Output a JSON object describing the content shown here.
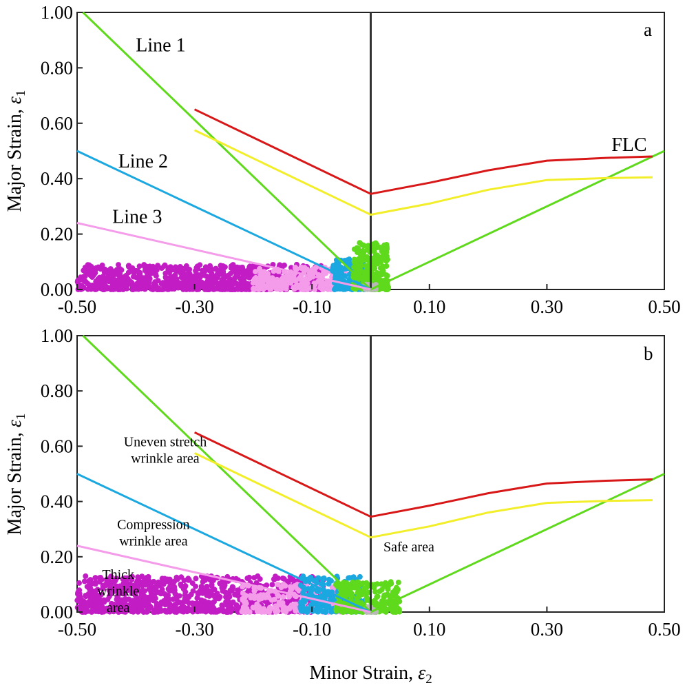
{
  "chart_data": [
    {
      "type": "scatter",
      "panel": "a",
      "xlabel": "",
      "ylabel": "Major Strain, ε1",
      "xlim": [
        -0.5,
        0.5
      ],
      "ylim": [
        0,
        1
      ],
      "x_ticks": [
        "-0.50",
        "-0.30",
        "-0.10",
        "0.10",
        "0.30",
        "0.50"
      ],
      "y_ticks": [
        "0.00",
        "0.20",
        "0.40",
        "0.60",
        "0.80",
        "1.00"
      ],
      "line_labels": [
        {
          "text": "Line 1",
          "x": -0.4,
          "y": 0.86
        },
        {
          "text": "Line 2",
          "x": -0.43,
          "y": 0.44
        },
        {
          "text": "Line 3",
          "x": -0.44,
          "y": 0.24
        },
        {
          "text": "FLC",
          "x": 0.41,
          "y": 0.5
        }
      ],
      "area_labels": [],
      "series": [
        {
          "name": "",
          "kind": "line",
          "color": "#5fd91c",
          "points": [
            [
              -0.49,
              1.0
            ],
            [
              0.0,
              0.0
            ],
            [
              0.5,
              0.5
            ]
          ]
        },
        {
          "name": "",
          "kind": "line",
          "color": "#1ba8e0",
          "points": [
            [
              -0.5,
              0.5
            ],
            [
              0.0,
              0.0
            ]
          ]
        },
        {
          "name": "",
          "kind": "line",
          "color": "#f49bea",
          "points": [
            [
              -0.5,
              0.24
            ],
            [
              0.0,
              0.0
            ]
          ]
        },
        {
          "name": "FLC",
          "kind": "line",
          "color": "#d81818",
          "points": [
            [
              -0.3,
              0.65
            ],
            [
              0.0,
              0.345
            ],
            [
              0.1,
              0.385
            ],
            [
              0.2,
              0.43
            ],
            [
              0.3,
              0.465
            ],
            [
              0.4,
              0.475
            ],
            [
              0.48,
              0.48
            ]
          ]
        },
        {
          "name": "",
          "kind": "line",
          "color": "#f2ee2a",
          "points": [
            [
              -0.3,
              0.575
            ],
            [
              0.0,
              0.27
            ],
            [
              0.1,
              0.31
            ],
            [
              0.2,
              0.36
            ],
            [
              0.3,
              0.395
            ],
            [
              0.4,
              0.402
            ],
            [
              0.48,
              0.405
            ]
          ]
        },
        {
          "name": "",
          "kind": "points",
          "color": "#c21cc4",
          "x_range": [
            -0.5,
            -0.08
          ],
          "y_max": 0.09,
          "n": 900
        },
        {
          "name": "",
          "kind": "points",
          "color": "#f49bea",
          "x_range": [
            -0.2,
            -0.04
          ],
          "y_max": 0.08,
          "n": 200
        },
        {
          "name": "",
          "kind": "points",
          "color": "#1ba8e0",
          "x_range": [
            -0.065,
            -0.01
          ],
          "y_max": 0.11,
          "n": 180
        },
        {
          "name": "",
          "kind": "points",
          "color": "#5fd91c",
          "x_range": [
            -0.03,
            0.03
          ],
          "y_max": 0.17,
          "n": 220
        },
        {
          "name": "",
          "kind": "points",
          "color": "#b8b8b8",
          "x_range": [
            -0.01,
            0.01
          ],
          "y_max": 0.02,
          "n": 30
        }
      ]
    },
    {
      "type": "scatter",
      "panel": "b",
      "xlabel": "Minor Strain, ε2",
      "ylabel": "Major Strain, ε1",
      "xlim": [
        -0.5,
        0.5
      ],
      "ylim": [
        0,
        1
      ],
      "x_ticks": [
        "-0.50",
        "-0.30",
        "-0.10",
        "0.10",
        "0.30",
        "0.50"
      ],
      "y_ticks": [
        "0.00",
        "0.20",
        "0.40",
        "0.60",
        "0.80",
        "1.00"
      ],
      "line_labels": [],
      "area_labels": [
        {
          "lines": [
            "Uneven stretch",
            "wrinkle area"
          ],
          "x": -0.35,
          "y": 0.6
        },
        {
          "lines": [
            "Compression",
            "wrinkle area"
          ],
          "x": -0.37,
          "y": 0.3
        },
        {
          "lines": [
            "Thick",
            "wrinkle",
            "area"
          ],
          "x": -0.43,
          "y": 0.12
        },
        {
          "lines": [
            "Safe area"
          ],
          "x": 0.065,
          "y": 0.22
        }
      ],
      "series": [
        {
          "name": "",
          "kind": "line",
          "color": "#5fd91c",
          "points": [
            [
              -0.49,
              1.0
            ],
            [
              0.0,
              0.0
            ],
            [
              0.5,
              0.5
            ]
          ]
        },
        {
          "name": "",
          "kind": "line",
          "color": "#1ba8e0",
          "points": [
            [
              -0.5,
              0.5
            ],
            [
              0.0,
              0.0
            ]
          ]
        },
        {
          "name": "",
          "kind": "line",
          "color": "#f49bea",
          "points": [
            [
              -0.5,
              0.24
            ],
            [
              0.0,
              0.0
            ]
          ]
        },
        {
          "name": "",
          "kind": "line",
          "color": "#d81818",
          "points": [
            [
              -0.3,
              0.65
            ],
            [
              0.0,
              0.345
            ],
            [
              0.1,
              0.385
            ],
            [
              0.2,
              0.43
            ],
            [
              0.3,
              0.465
            ],
            [
              0.4,
              0.475
            ],
            [
              0.48,
              0.48
            ]
          ]
        },
        {
          "name": "",
          "kind": "line",
          "color": "#f2ee2a",
          "points": [
            [
              -0.3,
              0.575
            ],
            [
              0.0,
              0.27
            ],
            [
              0.1,
              0.31
            ],
            [
              0.2,
              0.36
            ],
            [
              0.3,
              0.395
            ],
            [
              0.4,
              0.402
            ],
            [
              0.48,
              0.405
            ]
          ]
        },
        {
          "name": "",
          "kind": "points",
          "color": "#c21cc4",
          "x_range": [
            -0.5,
            -0.08
          ],
          "y_max": 0.13,
          "n": 950
        },
        {
          "name": "",
          "kind": "points",
          "color": "#f49bea",
          "x_range": [
            -0.22,
            -0.04
          ],
          "y_max": 0.1,
          "n": 220
        },
        {
          "name": "",
          "kind": "points",
          "color": "#1ba8e0",
          "x_range": [
            -0.12,
            -0.01
          ],
          "y_max": 0.13,
          "n": 200
        },
        {
          "name": "",
          "kind": "points",
          "color": "#5fd91c",
          "x_range": [
            -0.06,
            0.05
          ],
          "y_max": 0.11,
          "n": 230
        },
        {
          "name": "",
          "kind": "points",
          "color": "#b8b8b8",
          "x_range": [
            -0.01,
            0.01
          ],
          "y_max": 0.02,
          "n": 30
        }
      ]
    }
  ]
}
